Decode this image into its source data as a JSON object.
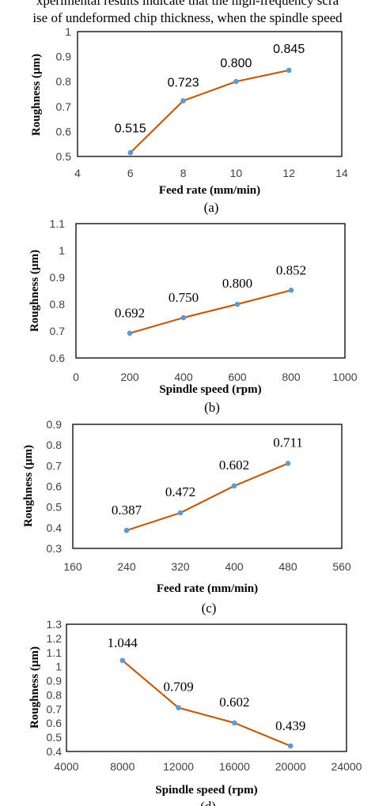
{
  "header": {
    "line1": "xperimental results indicate that the high-frequency scra",
    "line2": "ise of undeformed chip thickness, when the spindle speed"
  },
  "style": {
    "line_color": "#c55a11",
    "marker_color": "#5b9bd5",
    "frame_color": "#000000"
  },
  "chart_data": [
    {
      "type": "line",
      "x": [
        6,
        8,
        10,
        12
      ],
      "values": [
        0.515,
        0.723,
        0.8,
        0.845
      ],
      "data_labels": [
        "0.515",
        "0.723",
        "0.800",
        "0.845"
      ],
      "xlabel": "Feed rate (mm/min)",
      "ylabel": "Roughness (µm)",
      "xlim": [
        4,
        14
      ],
      "ylim": [
        0.5,
        1.0
      ],
      "xticks": [
        "4",
        "6",
        "8",
        "10",
        "12",
        "14"
      ],
      "yticks": [
        "0.5",
        "0.6",
        "0.7",
        "0.8",
        "0.9",
        "1"
      ],
      "caption": "(a)"
    },
    {
      "type": "line",
      "x": [
        200,
        400,
        600,
        800
      ],
      "values": [
        0.692,
        0.75,
        0.8,
        0.852
      ],
      "data_labels": [
        "0.692",
        "0.750",
        "0.800",
        "0.852"
      ],
      "xlabel": "Spindle speed (rpm)",
      "ylabel": "Roughness (µm)",
      "xlim": [
        0,
        1000
      ],
      "ylim": [
        0.6,
        1.1
      ],
      "xticks": [
        "0",
        "200",
        "400",
        "600",
        "800",
        "1000"
      ],
      "yticks": [
        "0.6",
        "0.7",
        "0.8",
        "0.9",
        "1",
        "1.1"
      ],
      "caption": "(b)"
    },
    {
      "type": "line",
      "x": [
        240,
        320,
        400,
        480
      ],
      "values": [
        0.387,
        0.472,
        0.602,
        0.711
      ],
      "data_labels": [
        "0.387",
        "0.472",
        "0.602",
        "0.711"
      ],
      "xlabel": "Feed rate (mm/min)",
      "ylabel": "Roughness (µm)",
      "xlim": [
        160,
        560
      ],
      "ylim": [
        0.3,
        0.9
      ],
      "xticks": [
        "160",
        "240",
        "320",
        "400",
        "480",
        "560"
      ],
      "yticks": [
        "0.3",
        "0.4",
        "0.5",
        "0.6",
        "0.7",
        "0.8",
        "0.9"
      ],
      "caption": "(c)"
    },
    {
      "type": "line",
      "x": [
        8000,
        12000,
        16000,
        20000
      ],
      "values": [
        1.044,
        0.709,
        0.602,
        0.439
      ],
      "data_labels": [
        "1.044",
        "0.709",
        "0.602",
        "0.439"
      ],
      "xlabel": "Spindle speed (rpm)",
      "ylabel": "Roughness (µm)",
      "xlim": [
        4000,
        24000
      ],
      "ylim": [
        0.4,
        1.3
      ],
      "xticks": [
        "4000",
        "8000",
        "12000",
        "16000",
        "20000",
        "24000"
      ],
      "yticks": [
        "0.4",
        "0.5",
        "0.6",
        "0.7",
        "0.8",
        "0.9",
        "1",
        "1.1",
        "1.2",
        "1.3"
      ],
      "caption": "(d)"
    }
  ]
}
